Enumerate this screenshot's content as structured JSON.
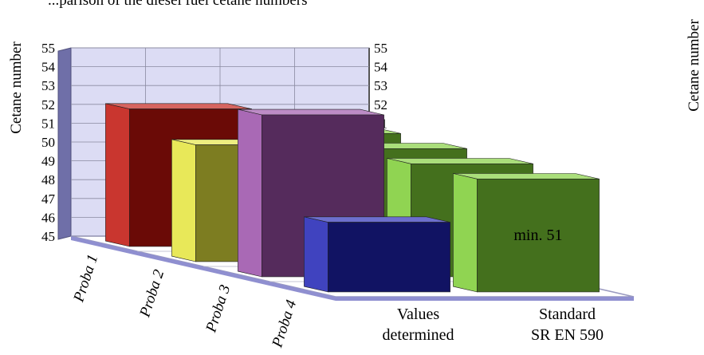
{
  "caption": "...parison of the diesel fuel cetane numbers",
  "chart_data": {
    "type": "bar",
    "subtype": "3d-grouped",
    "ylabel": "Cetane number",
    "ylim": [
      45,
      55
    ],
    "yticks": [
      45,
      46,
      47,
      48,
      49,
      50,
      51,
      52,
      53,
      54,
      55
    ],
    "grid": true,
    "categories": [
      "Values determined",
      "Standard SR EN 590"
    ],
    "series": [
      {
        "name": "Proba 1",
        "color": "#c0120a",
        "values": [
          52.3,
          51
        ]
      },
      {
        "name": "Proba 2",
        "color": "#e4e43c",
        "values": [
          51.2,
          51
        ]
      },
      {
        "name": "Proba 3",
        "color": "#9a4ea8",
        "values": [
          53.6,
          51
        ]
      },
      {
        "name": "Proba 4",
        "color": "#1e22b4",
        "values": [
          48.7,
          51
        ]
      }
    ],
    "standard_color": "#7ccc34",
    "data_labels": [
      {
        "series": "Proba 3",
        "category": "Standard SR EN 590",
        "text": "min"
      },
      {
        "series": "Proba 4",
        "category": "Standard SR EN 590",
        "text": "min. 51"
      }
    ]
  }
}
